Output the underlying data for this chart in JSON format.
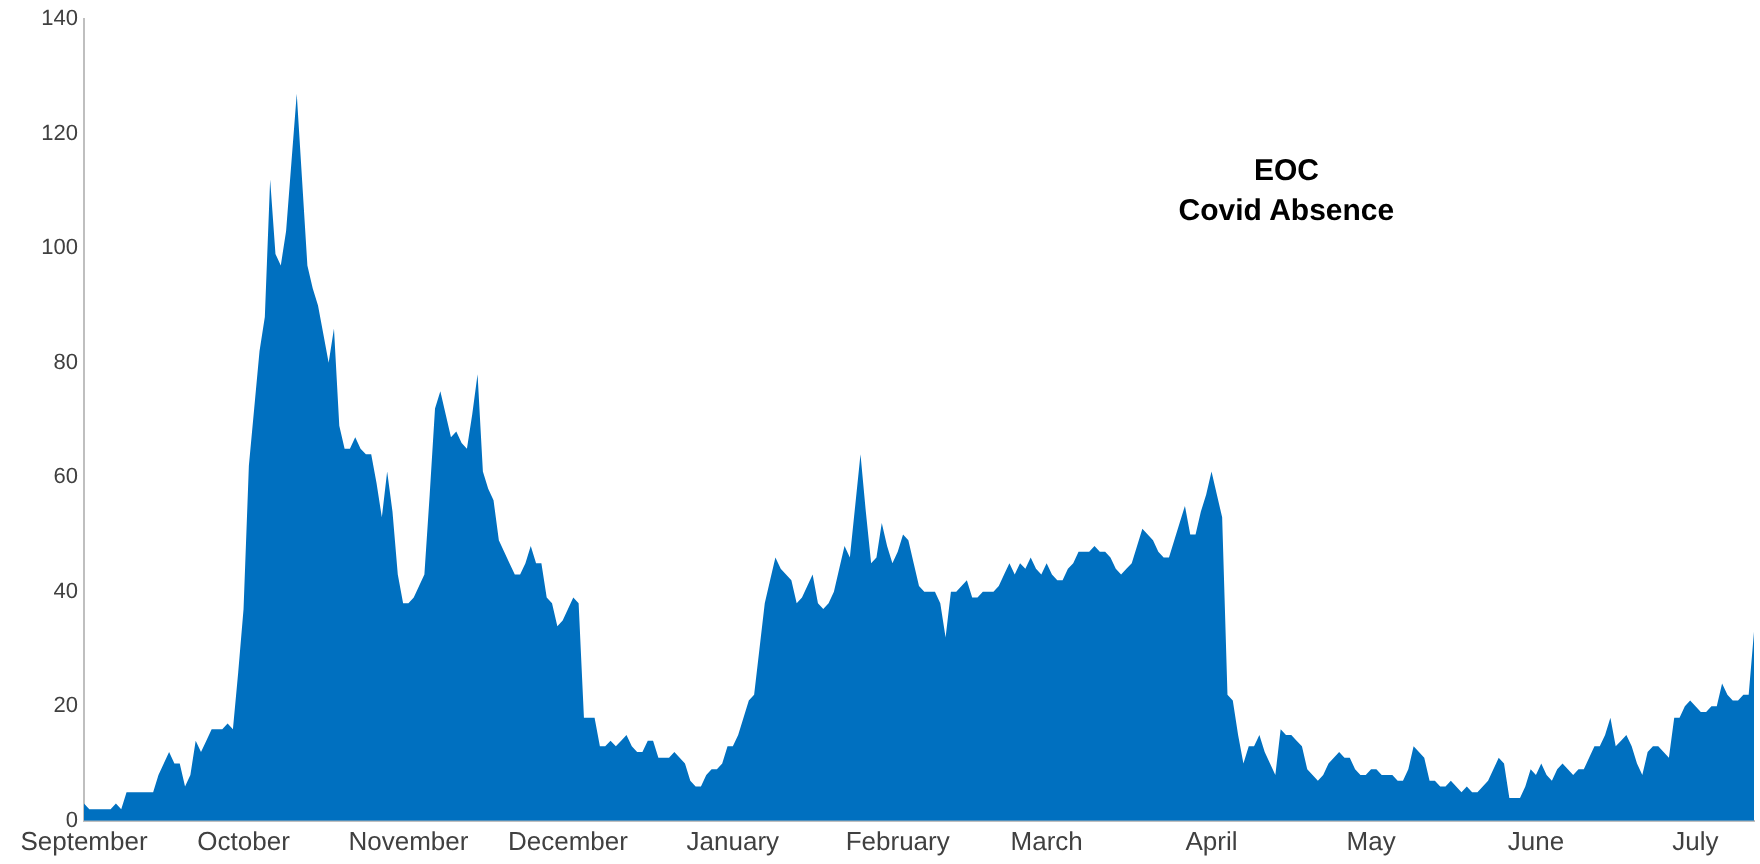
{
  "chart_data": {
    "type": "area",
    "title": "EOC",
    "subtitle": "Covid Absence",
    "ylim": [
      0,
      140
    ],
    "yticks": [
      0,
      20,
      40,
      60,
      80,
      100,
      120,
      140
    ],
    "grid": false,
    "legend": false,
    "categories": [
      "September",
      null,
      null,
      null,
      null,
      null,
      null,
      null,
      null,
      null,
      null,
      null,
      null,
      null,
      null,
      null,
      null,
      null,
      null,
      null,
      null,
      null,
      null,
      null,
      null,
      null,
      null,
      null,
      null,
      null,
      "October",
      null,
      null,
      null,
      null,
      null,
      null,
      null,
      null,
      null,
      null,
      null,
      null,
      null,
      null,
      null,
      null,
      null,
      null,
      null,
      null,
      null,
      null,
      null,
      null,
      null,
      null,
      null,
      null,
      null,
      null,
      "November",
      null,
      null,
      null,
      null,
      null,
      null,
      null,
      null,
      null,
      null,
      null,
      null,
      null,
      null,
      null,
      null,
      null,
      null,
      null,
      null,
      null,
      null,
      null,
      null,
      null,
      null,
      null,
      null,
      null,
      "December",
      null,
      null,
      null,
      null,
      null,
      null,
      null,
      null,
      null,
      null,
      null,
      null,
      null,
      null,
      null,
      null,
      null,
      null,
      null,
      null,
      null,
      null,
      null,
      null,
      null,
      null,
      null,
      null,
      null,
      null,
      "January",
      null,
      null,
      null,
      null,
      null,
      null,
      null,
      null,
      null,
      null,
      null,
      null,
      null,
      null,
      null,
      null,
      null,
      null,
      null,
      null,
      null,
      null,
      null,
      null,
      null,
      null,
      null,
      null,
      null,
      null,
      "February",
      null,
      null,
      null,
      null,
      null,
      null,
      null,
      null,
      null,
      null,
      null,
      null,
      null,
      null,
      null,
      null,
      null,
      null,
      null,
      null,
      null,
      null,
      null,
      null,
      null,
      null,
      null,
      "March",
      null,
      null,
      null,
      null,
      null,
      null,
      null,
      null,
      null,
      null,
      null,
      null,
      null,
      null,
      null,
      null,
      null,
      null,
      null,
      null,
      null,
      null,
      null,
      null,
      null,
      null,
      null,
      null,
      null,
      null,
      "April",
      null,
      null,
      null,
      null,
      null,
      null,
      null,
      null,
      null,
      null,
      null,
      null,
      null,
      null,
      null,
      null,
      null,
      null,
      null,
      null,
      null,
      null,
      null,
      null,
      null,
      null,
      null,
      null,
      null,
      "May",
      null,
      null,
      null,
      null,
      null,
      null,
      null,
      null,
      null,
      null,
      null,
      null,
      null,
      null,
      null,
      null,
      null,
      null,
      null,
      null,
      null,
      null,
      null,
      null,
      null,
      null,
      null,
      null,
      null,
      null,
      "June",
      null,
      null,
      null,
      null,
      null,
      null,
      null,
      null,
      null,
      null,
      null,
      null,
      null,
      null,
      null,
      null,
      null,
      null,
      null,
      null,
      null,
      null,
      null,
      null,
      null,
      null,
      null,
      null,
      null,
      "July",
      null,
      null,
      null,
      null,
      null,
      null,
      null,
      null,
      null,
      null,
      null
    ],
    "series": [
      {
        "color": "#0070c0",
        "values": [
          3,
          2,
          2,
          2,
          2,
          2,
          3,
          2,
          5,
          5,
          5,
          5,
          5,
          5,
          8,
          10,
          12,
          10,
          10,
          6,
          8,
          14,
          12,
          14,
          16,
          16,
          16,
          17,
          16,
          26,
          37,
          62,
          72,
          82,
          88,
          112,
          99,
          97,
          103,
          115,
          127,
          112,
          97,
          93,
          90,
          85,
          80,
          86,
          69,
          65,
          65,
          67,
          65,
          64,
          64,
          59,
          53,
          61,
          54,
          43,
          38,
          38,
          39,
          41,
          43,
          57,
          72,
          75,
          71,
          67,
          68,
          66,
          65,
          71,
          78,
          61,
          58,
          56,
          49,
          47,
          45,
          43,
          43,
          45,
          48,
          45,
          45,
          39,
          38,
          34,
          35,
          37,
          39,
          38,
          18,
          18,
          18,
          13,
          13,
          14,
          13,
          14,
          15,
          13,
          12,
          12,
          14,
          14,
          11,
          11,
          11,
          12,
          11,
          10,
          7,
          6,
          6,
          8,
          9,
          9,
          10,
          13,
          13,
          15,
          18,
          21,
          22,
          30,
          38,
          42,
          46,
          44,
          43,
          42,
          38,
          39,
          41,
          43,
          38,
          37,
          38,
          40,
          44,
          48,
          46,
          55,
          64,
          54,
          45,
          46,
          52,
          48,
          45,
          47,
          50,
          49,
          45,
          41,
          40,
          40,
          40,
          38,
          32,
          40,
          40,
          41,
          42,
          39,
          39,
          40,
          40,
          40,
          41,
          43,
          45,
          43,
          45,
          44,
          46,
          44,
          43,
          45,
          43,
          42,
          42,
          44,
          45,
          47,
          47,
          47,
          48,
          47,
          47,
          46,
          44,
          43,
          44,
          45,
          48,
          51,
          50,
          49,
          47,
          46,
          46,
          49,
          52,
          55,
          50,
          50,
          54,
          57,
          61,
          57,
          53,
          22,
          21,
          15,
          10,
          13,
          13,
          15,
          12,
          10,
          8,
          16,
          15,
          15,
          14,
          13,
          9,
          8,
          7,
          8,
          10,
          11,
          12,
          11,
          11,
          9,
          8,
          8,
          9,
          9,
          8,
          8,
          8,
          7,
          7,
          9,
          13,
          12,
          11,
          7,
          7,
          6,
          6,
          7,
          6,
          5,
          6,
          5,
          5,
          6,
          7,
          9,
          11,
          10,
          4,
          4,
          4,
          6,
          9,
          8,
          10,
          8,
          7,
          9,
          10,
          9,
          8,
          9,
          9,
          11,
          13,
          13,
          15,
          18,
          13,
          14,
          15,
          13,
          10,
          8,
          12,
          13,
          13,
          12,
          11,
          18,
          18,
          20,
          21,
          20,
          19,
          19,
          20,
          20,
          24,
          22,
          21,
          21,
          22,
          22,
          33
        ]
      }
    ]
  }
}
